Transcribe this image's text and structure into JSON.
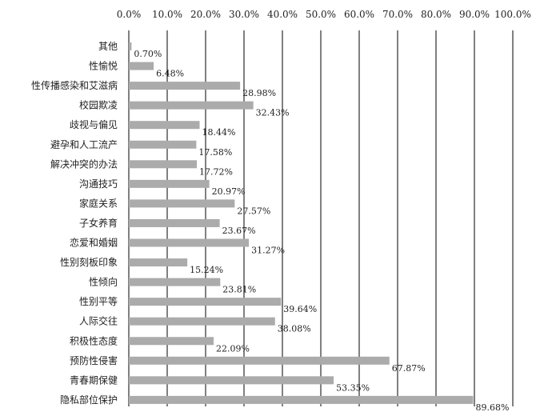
{
  "chart_data": {
    "type": "bar",
    "orientation": "horizontal",
    "title": "",
    "xlabel": "",
    "ylabel": "",
    "xlim": [
      0,
      100
    ],
    "x_ticks": [
      "0.0%",
      "10.0%",
      "20.0%",
      "30.0%",
      "40.0%",
      "50.0%",
      "60.0%",
      "70.0%",
      "80.0%",
      "90.0%",
      "100.0%"
    ],
    "axis_position": "top",
    "grid": true,
    "bar_color": "#ababab",
    "categories": [
      "其他",
      "性愉悦",
      "性传播感染和艾滋病",
      "校园欺凌",
      "歧视与偏见",
      "避孕和人工流产",
      "解决冲突的办法",
      "沟通技巧",
      "家庭关系",
      "子女养育",
      "恋爱和婚姻",
      "性别刻板印象",
      "性倾向",
      "性别平等",
      "人际交往",
      "积极性态度",
      "预防性侵害",
      "青春期保健",
      "隐私部位保护"
    ],
    "values": [
      0.7,
      6.48,
      28.98,
      32.43,
      18.44,
      17.58,
      17.72,
      20.97,
      27.57,
      23.67,
      31.27,
      15.24,
      23.81,
      39.64,
      38.08,
      22.09,
      67.87,
      53.35,
      89.68
    ],
    "value_labels": [
      "0.70%",
      "6.48%",
      "28.98%",
      "32.43%",
      "18.44%",
      "17.58%",
      "17.72%",
      "20.97%",
      "27.57%",
      "23.67%",
      "31.27%",
      "15.24%",
      "23.81%",
      "39.64%",
      "38.08%",
      "22.09%",
      "67.87%",
      "53.35%",
      "89.68%"
    ]
  }
}
